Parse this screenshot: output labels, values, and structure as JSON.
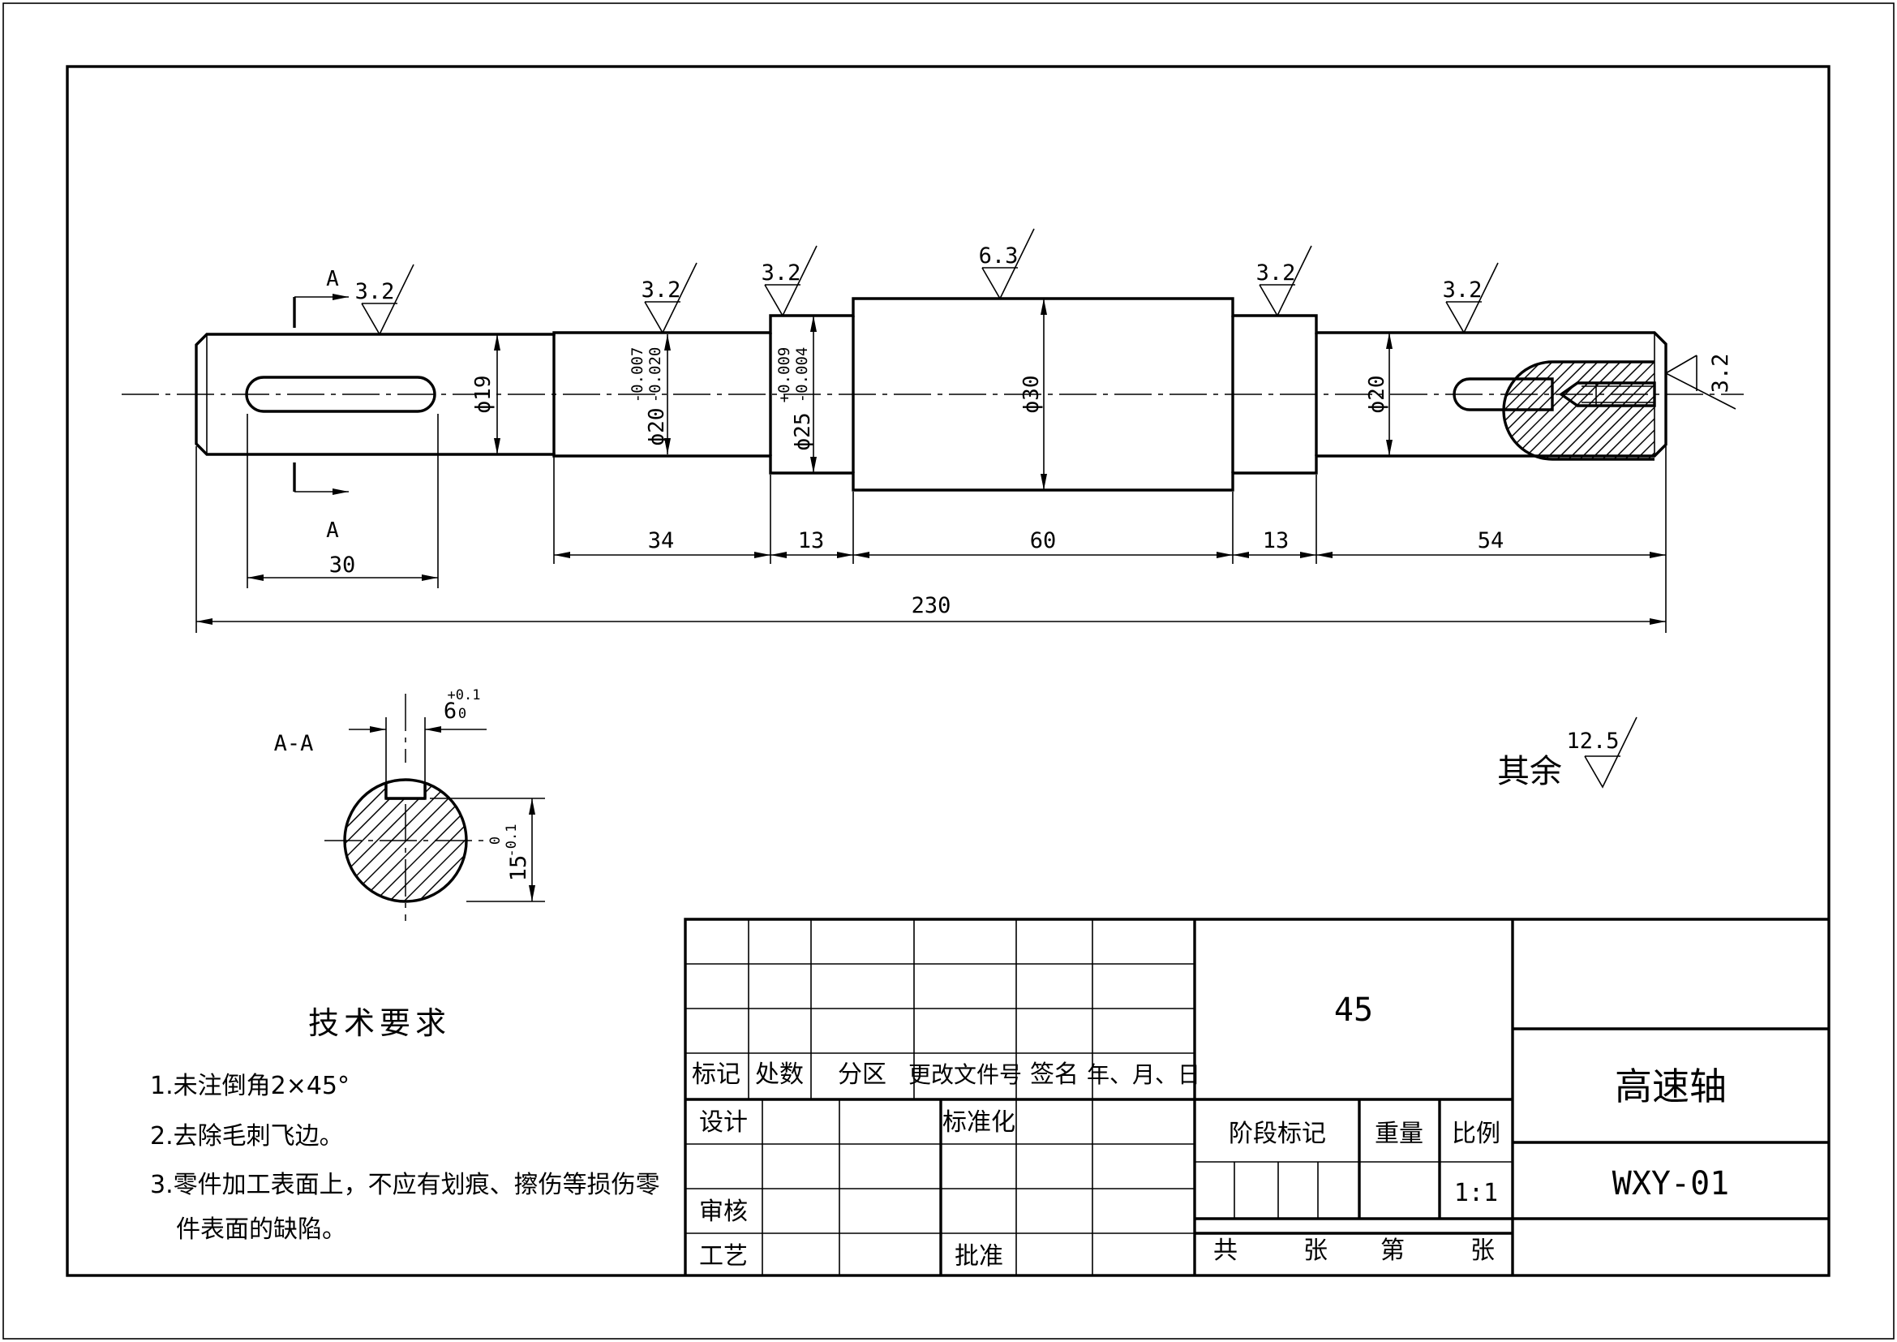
{
  "section": {
    "cut_label": "A",
    "view_label": "A-A",
    "key_width": "6",
    "key_tol_upper": "+0.1",
    "key_tol_lower": "0",
    "depth": "15",
    "depth_tol_upper": "0",
    "depth_tol_lower": "-0.1"
  },
  "roughness": {
    "marks": [
      "3.2",
      "3.2",
      "3.2",
      "6.3",
      "3.2",
      "3.2",
      "3.2"
    ],
    "other_label": "其余",
    "other_value": "12.5"
  },
  "diameters": {
    "d1": "ϕ19",
    "d2": "ϕ20",
    "d2_tol_upper": "-0.007",
    "d2_tol_lower": "-0.020",
    "d3": "ϕ25",
    "d3_tol_upper": "+0.009",
    "d3_tol_lower": "-0.004",
    "d4": "ϕ30",
    "d5": "ϕ20"
  },
  "lengths": {
    "keyway": "30",
    "seg1": "34",
    "seg2": "13",
    "seg3": "60",
    "seg4": "13",
    "seg5": "54",
    "total": "230"
  },
  "tech_requirements": {
    "title": "技术要求",
    "items": [
      "1.未注倒角2×45°",
      "2.去除毛刺飞边。",
      "3.零件加工表面上，不应有划痕、擦伤等损伤零",
      "件表面的缺陷。"
    ]
  },
  "title_block": {
    "revision_headers": [
      "标记",
      "处数",
      "分区",
      "更改文件号",
      "签名",
      "年、月、日"
    ],
    "design": "设计",
    "standardization": "标准化",
    "review": "审核",
    "process": "工艺",
    "approve": "批准",
    "material": "45",
    "stage_mark": "阶段标记",
    "weight": "重量",
    "scale_label": "比例",
    "scale": "1:1",
    "sheets_total": "共",
    "sheets_unit": "张",
    "sheet_no": "第",
    "sheet_unit": "张",
    "part_name": "高速轴",
    "drawing_no": "WXY-01"
  }
}
